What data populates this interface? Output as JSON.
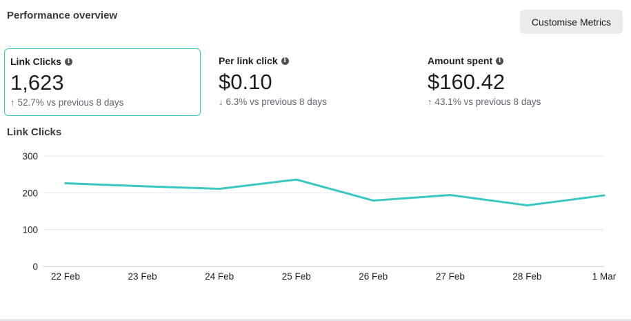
{
  "panel": {
    "title": "Performance overview",
    "customise_label": "Customise Metrics"
  },
  "metrics": [
    {
      "label": "Link Clicks",
      "value": "1,623",
      "direction": "up",
      "change": "52.7% vs previous 8 days",
      "selected": true
    },
    {
      "label": "Per link click",
      "value": "$0.10",
      "direction": "down",
      "change": "6.3% vs previous 8 days",
      "selected": false
    },
    {
      "label": "Amount spent",
      "value": "$160.42",
      "direction": "up",
      "change": "43.1% vs previous 8 days",
      "selected": false
    }
  ],
  "icons": {
    "info": "info-icon",
    "arrow_up": "arrow-up-icon",
    "arrow_down": "arrow-down-icon"
  },
  "colors": {
    "accent": "#3bc7c2",
    "text": "#1c1e21",
    "muted": "#606770"
  },
  "chart_data": {
    "type": "line",
    "title": "Link Clicks",
    "categories": [
      "22 Feb",
      "23 Feb",
      "24 Feb",
      "25 Feb",
      "26 Feb",
      "27 Feb",
      "28 Feb",
      "1 Mar"
    ],
    "series": [
      {
        "values": [
          226,
          218,
          211,
          236,
          179,
          194,
          166,
          193
        ],
        "color": "#3bc7c2"
      }
    ],
    "ylim": [
      0,
      300
    ],
    "yticks": [
      0,
      100,
      200,
      300
    ],
    "grid": true
  }
}
